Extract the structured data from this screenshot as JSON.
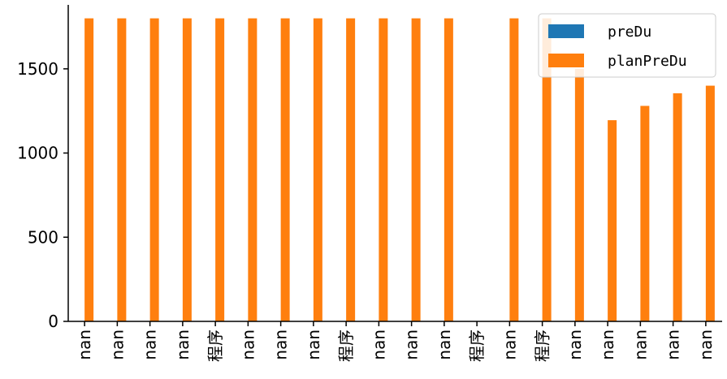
{
  "colors": {
    "preDu": "#1f77b4",
    "planPreDu": "#ff7f0e",
    "axis": "#000000"
  },
  "chart_data": {
    "type": "bar",
    "title": "",
    "xlabel": "",
    "ylabel": "",
    "ylim": [
      0,
      1880
    ],
    "yticks": [
      0,
      500,
      1000,
      1500
    ],
    "categories": [
      "nan",
      "nan",
      "nan",
      "nan",
      "程序",
      "nan",
      "nan",
      "nan",
      "程序",
      "nan",
      "nan",
      "nan",
      "程序",
      "nan",
      "程序",
      "nan",
      "nan",
      "nan",
      "nan",
      "nan"
    ],
    "series": [
      {
        "name": "preDu",
        "values": [
          0,
          0,
          0,
          0,
          0,
          0,
          0,
          0,
          0,
          0,
          0,
          0,
          0,
          0,
          0,
          0,
          0,
          0,
          0,
          0
        ]
      },
      {
        "name": "planPreDu",
        "values": [
          1800,
          1800,
          1800,
          1800,
          1800,
          1800,
          1800,
          1800,
          1800,
          1800,
          1800,
          1800,
          0,
          1800,
          1800,
          1500,
          1195,
          1280,
          1355,
          1400
        ]
      }
    ],
    "legend": {
      "position": "upper right",
      "entries": [
        "preDu",
        "planPreDu"
      ]
    },
    "grid": false
  }
}
